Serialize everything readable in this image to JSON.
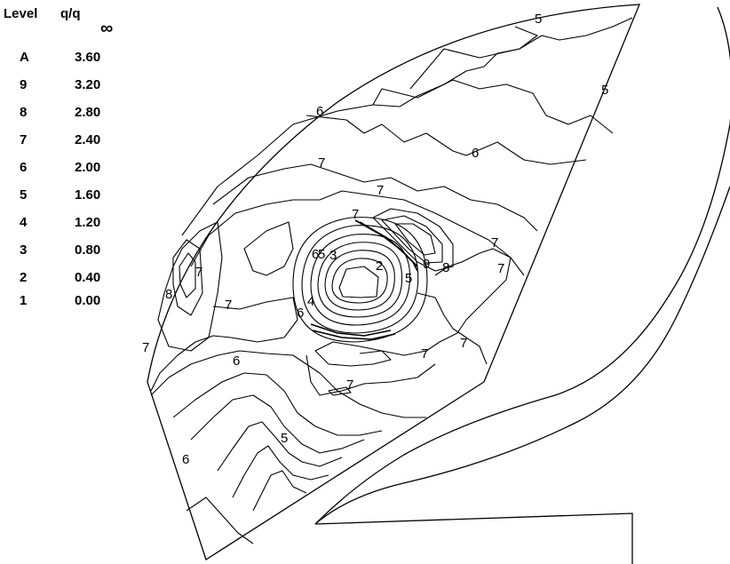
{
  "legend": {
    "header_level": "Level",
    "header_quantity": "q/q",
    "header_quantity_sub": "∞",
    "rows": [
      {
        "level": "A",
        "value": "3.60"
      },
      {
        "level": "9",
        "value": "3.20"
      },
      {
        "level": "8",
        "value": "2.80"
      },
      {
        "level": "7",
        "value": "2.40"
      },
      {
        "level": "6",
        "value": "2.00"
      },
      {
        "level": "5",
        "value": "1.60"
      },
      {
        "level": "4",
        "value": "1.20"
      },
      {
        "level": "3",
        "value": "0.80"
      },
      {
        "level": "2",
        "value": "0.40"
      },
      {
        "level": "1",
        "value": "0.00"
      }
    ]
  },
  "contour_labels": [
    {
      "name": "label-5-top",
      "text": "5"
    },
    {
      "name": "label-5-right",
      "text": "5"
    },
    {
      "name": "label-6-upper-left",
      "text": "6"
    },
    {
      "name": "label-6-upper-right",
      "text": "6"
    },
    {
      "name": "label-7-upper",
      "text": "7"
    },
    {
      "name": "label-7-mid",
      "text": "7"
    },
    {
      "name": "label-7-vortex-top",
      "text": "7"
    },
    {
      "name": "label-6-vortex",
      "text": "6"
    },
    {
      "name": "label-5-vortex",
      "text": "5"
    },
    {
      "name": "label-3-vortex",
      "text": "3"
    },
    {
      "name": "label-2-vortex",
      "text": "2"
    },
    {
      "name": "label-5-vortex-right",
      "text": "5"
    },
    {
      "name": "label-9-vortex",
      "text": "9"
    },
    {
      "name": "label-8-vortex",
      "text": "8"
    },
    {
      "name": "label-7-right-a",
      "text": "7"
    },
    {
      "name": "label-7-right-b",
      "text": "7"
    },
    {
      "name": "label-8-left",
      "text": "8"
    },
    {
      "name": "label-7-left-a",
      "text": "7"
    },
    {
      "name": "label-7-left-mid",
      "text": "7"
    },
    {
      "name": "label-4-vortex",
      "text": "4"
    },
    {
      "name": "label-6-vortex-low",
      "text": "6"
    },
    {
      "name": "label-7-left-b",
      "text": "7"
    },
    {
      "name": "label-6-left-low",
      "text": "6"
    },
    {
      "name": "label-7-lower-right",
      "text": "7"
    },
    {
      "name": "label-7-lower-right-b",
      "text": "7"
    },
    {
      "name": "label-7-lower",
      "text": "7"
    },
    {
      "name": "label-5-lower",
      "text": "5"
    },
    {
      "name": "label-6-bottom-left",
      "text": "6"
    }
  ]
}
